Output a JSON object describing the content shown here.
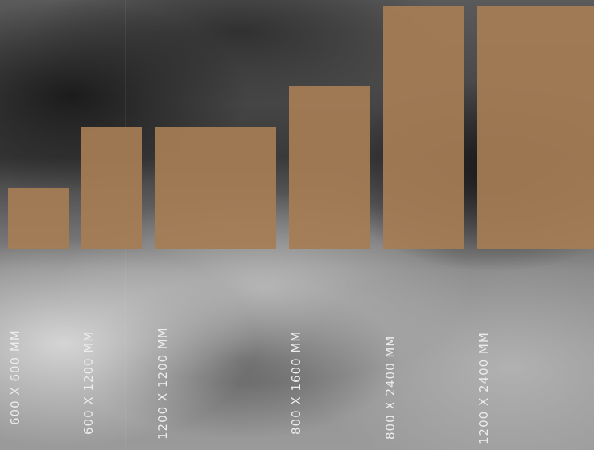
{
  "sizes": [
    {
      "label": "600 X 600 MM"
    },
    {
      "label": "600 X 1200 MM"
    },
    {
      "label": "1200 X 1200 MM"
    },
    {
      "label": "800 X 1600 MM"
    },
    {
      "label": "800 X 2400 MM"
    },
    {
      "label": "1200 X 2400 MM"
    }
  ]
}
